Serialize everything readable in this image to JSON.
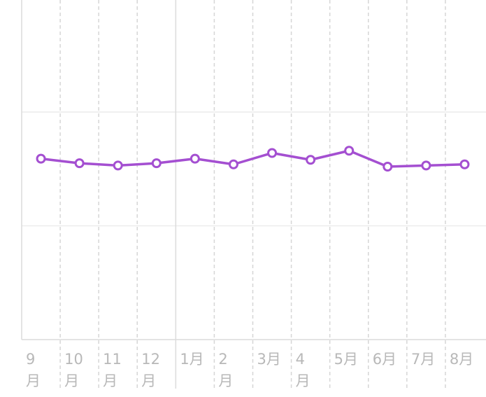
{
  "chart_data": {
    "type": "line",
    "categories": [
      "9\n月",
      "10\n月",
      "11\n月",
      "12\n月",
      "1月",
      "2\n月",
      "3月",
      "4\n月",
      "5月",
      "6月",
      "7月",
      "8月"
    ],
    "series": [
      {
        "color": "#a44fd1",
        "values": [
          1.59,
          1.55,
          1.53,
          1.55,
          1.59,
          1.54,
          1.64,
          1.58,
          1.66,
          1.52,
          1.53,
          1.54
        ]
      }
    ],
    "ylim": [
      0,
      3
    ],
    "yticks": [
      1,
      2
    ],
    "grid": true
  }
}
